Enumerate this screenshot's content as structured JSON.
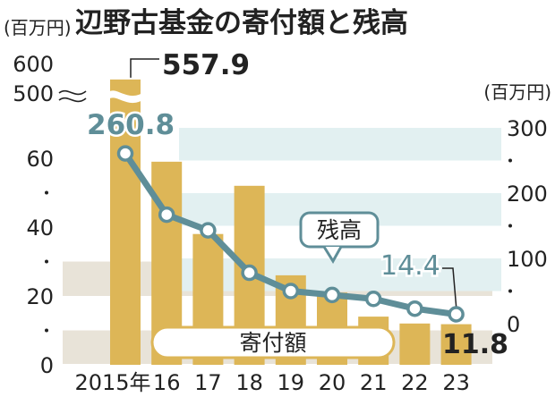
{
  "chart_data": {
    "type": "bar",
    "title": "辺野古基金の寄付額と残高",
    "categories": [
      "2015年",
      "16",
      "17",
      "18",
      "19",
      "20",
      "21",
      "22",
      "23"
    ],
    "series": [
      {
        "name": "寄付額",
        "chart_type": "bar",
        "axis": "left",
        "values": [
          557.9,
          59,
          38,
          52,
          26,
          21,
          14,
          12,
          11.8
        ]
      },
      {
        "name": "残高",
        "chart_type": "line",
        "axis": "right",
        "values": [
          260.8,
          167,
          143,
          78,
          50,
          44,
          38,
          23,
          14.4
        ]
      }
    ],
    "left_axis": {
      "unit": "(百万円)",
      "lower_ticks": [
        "0",
        "20",
        "40",
        "60"
      ],
      "upper_ticks": [
        "500",
        "600"
      ],
      "axis_break": true
    },
    "right_axis": {
      "unit": "(百万円)",
      "ticks": [
        "0",
        "100",
        "200",
        "300"
      ]
    },
    "data_labels": {
      "bar_first": "557.9",
      "bar_last": "11.8",
      "line_first": "260.8",
      "line_last": "14.4"
    },
    "colors": {
      "bar": "#ddb657",
      "line": "#5f8e98",
      "marker_fill": "#ffffff",
      "left_band": "#e8e3d8",
      "right_band": "#e2f0f1",
      "text": "#222222"
    }
  }
}
